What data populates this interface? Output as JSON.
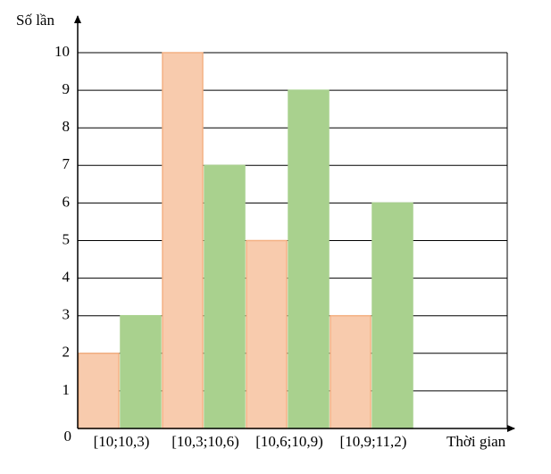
{
  "chart_data": {
    "type": "bar",
    "y_label": "Số lần",
    "x_label": "Thời gian",
    "categories": [
      "[10;10,3)",
      "[10,3;10,6)",
      "[10,6;10,9)",
      "[10,9;11,2)"
    ],
    "series": [
      {
        "color": "#f8cbad",
        "values": [
          2,
          10,
          5,
          3
        ]
      },
      {
        "color": "#a9d18e",
        "values": [
          3,
          7,
          9,
          6
        ]
      }
    ],
    "ylim": [
      0,
      10
    ],
    "yticks": [
      0,
      1,
      2,
      3,
      4,
      5,
      6,
      7,
      8,
      9,
      10
    ],
    "grid": true
  }
}
